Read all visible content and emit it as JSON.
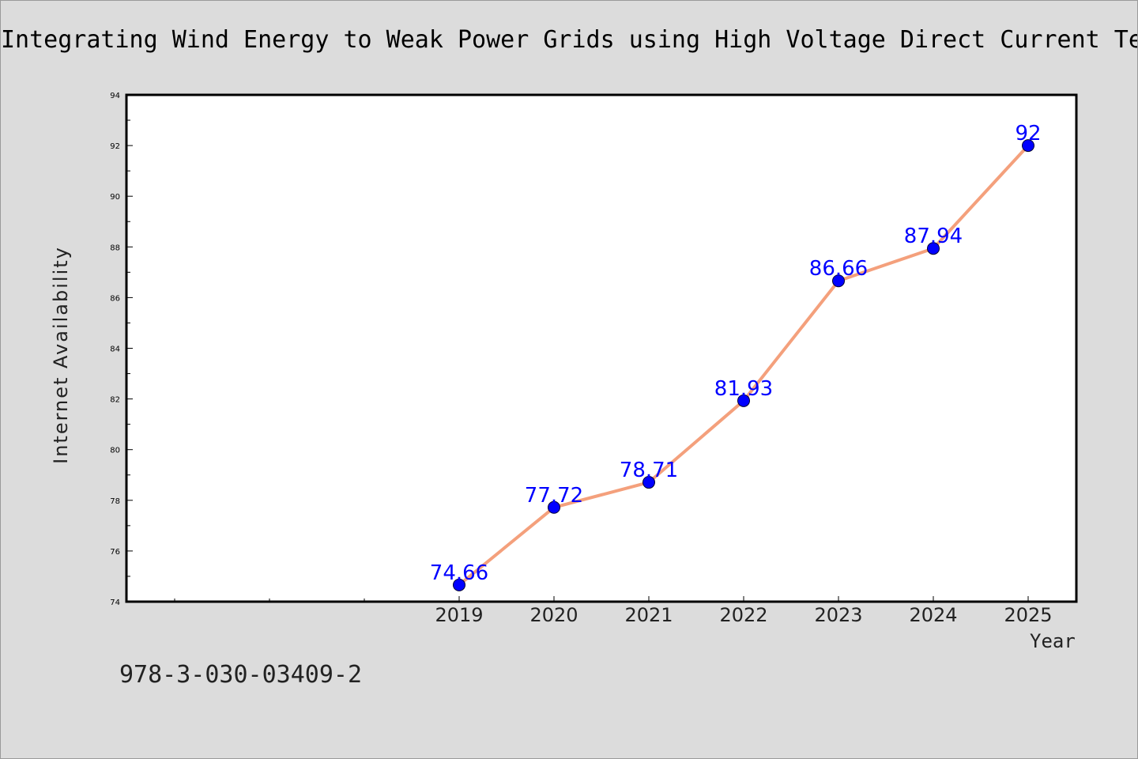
{
  "chart_data": {
    "type": "line",
    "title": "Integrating Wind Energy to Weak Power Grids using High Voltage Direct Current Te",
    "xlabel": "Year",
    "ylabel": "Internet Availability",
    "x": [
      "2019",
      "2020",
      "2021",
      "2022",
      "2023",
      "2024",
      "2025"
    ],
    "series": [
      {
        "values": [
          74.66,
          77.72,
          78.71,
          81.93,
          86.66,
          87.94,
          92
        ],
        "labels": [
          "74.66",
          "77.72",
          "78.71",
          "81.93",
          "86.66",
          "87.94",
          "92"
        ]
      }
    ],
    "ylim": [
      74,
      94
    ],
    "yticks": [
      "74",
      "76",
      "78",
      "80",
      "82",
      "84",
      "86",
      "88",
      "90",
      "92",
      "94"
    ],
    "grid": false,
    "line_color": "#f4a07c",
    "marker_color": "#0000ff"
  },
  "footer": {
    "isbn": "978-3-030-03409-2"
  }
}
